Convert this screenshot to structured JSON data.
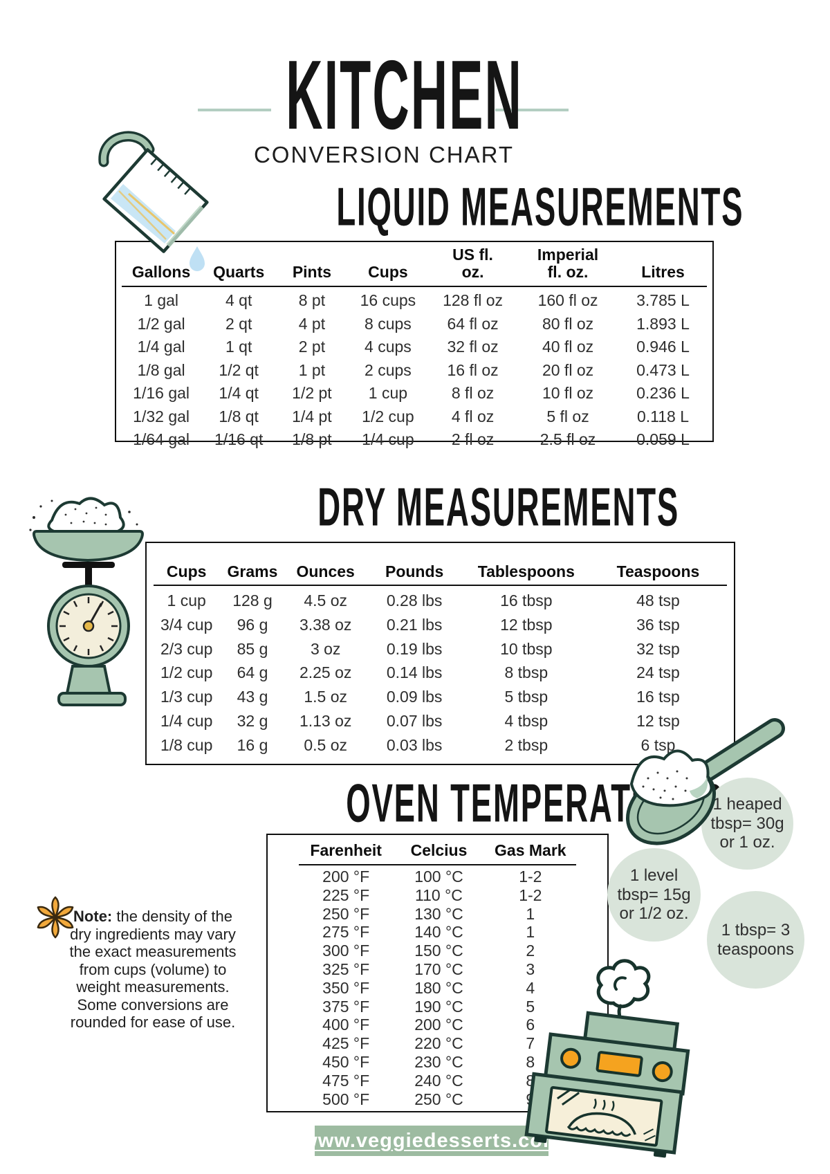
{
  "page": {
    "title": "KITCHEN",
    "subtitle": "CONVERSION CHART",
    "website": "www.veggiedesserts.com"
  },
  "liquid": {
    "heading": "LIQUID MEASUREMENTS",
    "columns": [
      "Gallons",
      "Quarts",
      "Pints",
      "Cups",
      "US fl. oz.",
      "Imperial fl. oz.",
      "Litres"
    ],
    "rows": [
      [
        "1 gal",
        "4 qt",
        "8 pt",
        "16 cups",
        "128 fl oz",
        "160 fl oz",
        "3.785 L"
      ],
      [
        "1/2 gal",
        "2 qt",
        "4 pt",
        "8 cups",
        "64 fl oz",
        "80 fl oz",
        "1.893 L"
      ],
      [
        "1/4 gal",
        "1 qt",
        "2 pt",
        "4 cups",
        "32 fl oz",
        "40 fl oz",
        "0.946 L"
      ],
      [
        "1/8 gal",
        "1/2 qt",
        "1 pt",
        "2 cups",
        "16 fl oz",
        "20 fl oz",
        "0.473 L"
      ],
      [
        "1/16 gal",
        "1/4 qt",
        "1/2 pt",
        "1 cup",
        "8 fl oz",
        "10 fl oz",
        "0.236 L"
      ],
      [
        "1/32 gal",
        "1/8 qt",
        "1/4 pt",
        "1/2 cup",
        "4 fl oz",
        "5 fl oz",
        "0.118 L"
      ],
      [
        "1/64 gal",
        "1/16 qt",
        "1/8 pt",
        "1/4 cup",
        "2 fl oz",
        "2.5 fl oz",
        "0.059 L"
      ]
    ]
  },
  "dry": {
    "heading": "DRY MEASUREMENTS",
    "columns": [
      "Cups",
      "Grams",
      "Ounces",
      "Pounds",
      "Tablespoons",
      "Teaspoons"
    ],
    "rows": [
      [
        "1 cup",
        "128 g",
        "4.5 oz",
        "0.28 lbs",
        "16 tbsp",
        "48 tsp"
      ],
      [
        "3/4 cup",
        "96 g",
        "3.38 oz",
        "0.21 lbs",
        "12 tbsp",
        "36 tsp"
      ],
      [
        "2/3 cup",
        "85 g",
        "3 oz",
        "0.19 lbs",
        "10 tbsp",
        "32 tsp"
      ],
      [
        "1/2 cup",
        "64 g",
        "2.25 oz",
        "0.14 lbs",
        "8 tbsp",
        "24 tsp"
      ],
      [
        "1/3 cup",
        "43 g",
        "1.5 oz",
        "0.09 lbs",
        "5 tbsp",
        "16 tsp"
      ],
      [
        "1/4 cup",
        "32 g",
        "1.13 oz",
        "0.07 lbs",
        "4 tbsp",
        "12 tsp"
      ],
      [
        "1/8 cup",
        "16 g",
        "0.5 oz",
        "0.03 lbs",
        "2 tbsp",
        "6 tsp"
      ]
    ]
  },
  "oven": {
    "heading": "OVEN TEMPERATURES",
    "columns": [
      "Farenheit",
      "Celcius",
      "Gas Mark"
    ],
    "rows": [
      [
        "200 °F",
        "100 °C",
        "1-2"
      ],
      [
        "225 °F",
        "110 °C",
        "1-2"
      ],
      [
        "250 °F",
        "130 °C",
        "1"
      ],
      [
        "275 °F",
        "140 °C",
        "1"
      ],
      [
        "300 °F",
        "150 °C",
        "2"
      ],
      [
        "325 °F",
        "170 °C",
        "3"
      ],
      [
        "350 °F",
        "180 °C",
        "4"
      ],
      [
        "375 °F",
        "190 °C",
        "5"
      ],
      [
        "400 °F",
        "200 °C",
        "6"
      ],
      [
        "425 °F",
        "220 °C",
        "7"
      ],
      [
        "450 °F",
        "230 °C",
        "8"
      ],
      [
        "475 °F",
        "240 °C",
        "8"
      ],
      [
        "500 °F",
        "250 °C",
        "9"
      ]
    ]
  },
  "note": {
    "label": "Note:",
    "text": " the density of the dry ingredients may vary the exact measurements from cups (volume) to weight measurements. Some conversions are rounded for ease of use."
  },
  "callouts": [
    {
      "text": "1 heaped tbsp= 30g or 1 oz."
    },
    {
      "text": "1 level tbsp= 15g or 1/2 oz."
    },
    {
      "text": "1 tbsp= 3 teaspoons"
    }
  ],
  "illustrations": [
    "measuring-jug-icon",
    "kitchen-scale-icon",
    "flour-spoon-icon",
    "oven-icon",
    "asterisk-icon",
    "water-drop-icon",
    "steam-icon"
  ],
  "colors": {
    "sage": "#a6c5af",
    "pale_sage_circle": "#d9e4da",
    "banner_green": "#9dbba1",
    "outline_dark": "#1d3a33",
    "orange": "#f2a93b",
    "cream": "#f3eedb",
    "light_blue": "#c9e6f5",
    "title_line": "#b3cdc1",
    "text_dark": "#1c1c1c"
  }
}
